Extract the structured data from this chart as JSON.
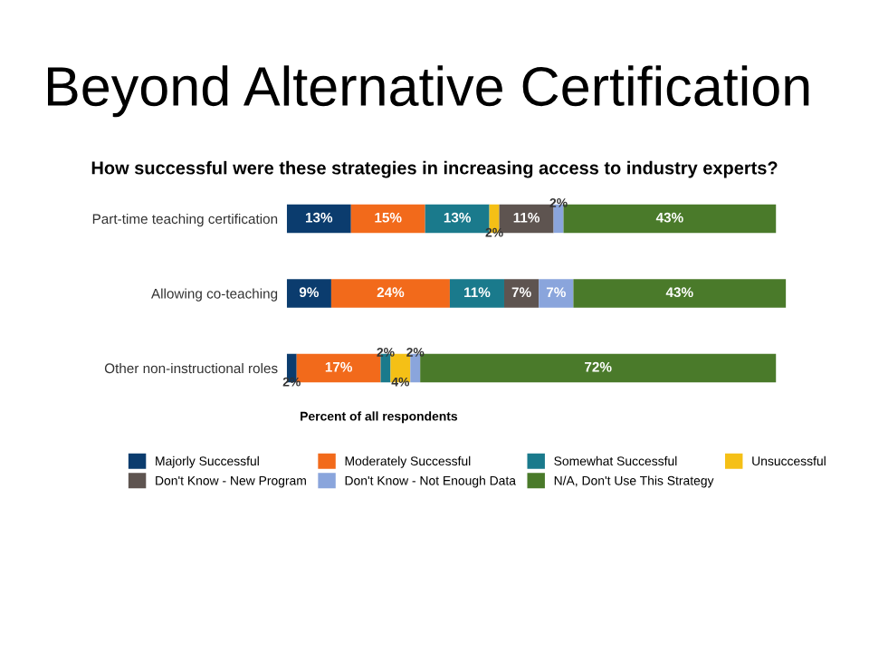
{
  "chart_data": {
    "type": "bar",
    "orientation": "horizontal",
    "stacked": true,
    "title": "Beyond Alternative Certification",
    "subtitle": "How successful were these strategies in increasing access to industry experts?",
    "xlabel": "Percent of all respondents",
    "categories": [
      "Part-time teaching certification",
      "Allowing co-teaching",
      "Other non-instructional roles"
    ],
    "xlim": [
      0,
      102
    ],
    "tick_labels": "y",
    "legend": "bottom",
    "series": [
      {
        "name": "Majorly Successful",
        "color": "#0b3c6e",
        "values": [
          13,
          9,
          2
        ],
        "value_labels": [
          "13%",
          "9%",
          "2%"
        ]
      },
      {
        "name": "Moderately Successful",
        "color": "#f26a1b",
        "values": [
          15,
          24,
          17
        ],
        "value_labels": [
          "15%",
          "24%",
          "17%"
        ]
      },
      {
        "name": "Somewhat Successful",
        "color": "#1a7a8c",
        "values": [
          13,
          11,
          2
        ],
        "value_labels": [
          "13%",
          "11%",
          "2%"
        ]
      },
      {
        "name": "Unsuccessful",
        "color": "#f5c016",
        "values": [
          2,
          null,
          4
        ],
        "value_labels": [
          "2%",
          null,
          "4%"
        ]
      },
      {
        "name": "Don't Know - New Program",
        "color": "#5e5450",
        "values": [
          11,
          7,
          null
        ],
        "value_labels": [
          "11%",
          "7%",
          null
        ]
      },
      {
        "name": "Don't Know - Not Enough Data",
        "color": "#8aa5dc",
        "values": [
          2,
          7,
          2
        ],
        "value_labels": [
          "2%",
          "7%",
          "2%"
        ]
      },
      {
        "name": "N/A, Don't Use This Strategy",
        "color": "#4a7a2a",
        "values": [
          43,
          43,
          72
        ],
        "value_labels": [
          "43%",
          "43%",
          "72%"
        ]
      }
    ]
  }
}
